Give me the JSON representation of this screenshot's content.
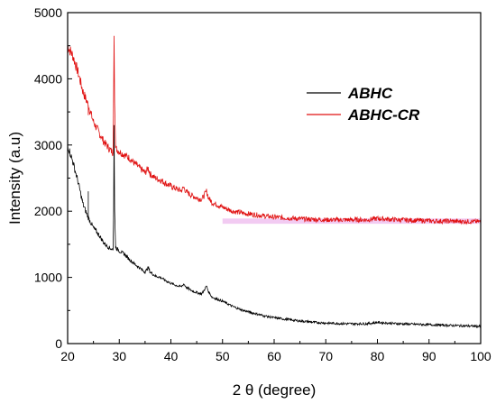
{
  "chart_data": {
    "type": "line",
    "title": "",
    "xlabel": "2 θ (degree)",
    "ylabel": "Intensity (a.u)",
    "xlim": [
      20,
      100
    ],
    "ylim": [
      0,
      5000
    ],
    "x_ticks": [
      20,
      30,
      40,
      50,
      60,
      70,
      80,
      90,
      100
    ],
    "y_ticks": [
      0,
      1000,
      2000,
      3000,
      4000,
      5000
    ],
    "grid": false,
    "legend_position": "upper-right",
    "colors": {
      "ABHC": "#000000",
      "ABHC-CR": "#e01010",
      "overlap_band": "#e8a0e8"
    },
    "series": [
      {
        "name": "ABHC",
        "color": "#000000",
        "points": [
          [
            20,
            3000
          ],
          [
            21,
            2750
          ],
          [
            22,
            2450
          ],
          [
            23,
            2100
          ],
          [
            24,
            1900
          ],
          [
            25,
            1750
          ],
          [
            26,
            1650
          ],
          [
            27,
            1520
          ],
          [
            28,
            1450
          ],
          [
            28.8,
            1420
          ],
          [
            28.9,
            2000
          ],
          [
            29.0,
            3300
          ],
          [
            29.1,
            2000
          ],
          [
            29.3,
            1450
          ],
          [
            30,
            1400
          ],
          [
            31,
            1350
          ],
          [
            32,
            1270
          ],
          [
            33,
            1200
          ],
          [
            34,
            1140
          ],
          [
            35,
            1080
          ],
          [
            35.6,
            1150
          ],
          [
            36,
            1080
          ],
          [
            37,
            1020
          ],
          [
            38,
            1000
          ],
          [
            39,
            950
          ],
          [
            40,
            910
          ],
          [
            41,
            880
          ],
          [
            42,
            860
          ],
          [
            42.5,
            900
          ],
          [
            43,
            850
          ],
          [
            44,
            800
          ],
          [
            45,
            770
          ],
          [
            46,
            750
          ],
          [
            46.9,
            870
          ],
          [
            47.3,
            780
          ],
          [
            48,
            700
          ],
          [
            50,
            640
          ],
          [
            52,
            560
          ],
          [
            54,
            500
          ],
          [
            56,
            460
          ],
          [
            58,
            420
          ],
          [
            60,
            390
          ],
          [
            62,
            370
          ],
          [
            64,
            350
          ],
          [
            66,
            335
          ],
          [
            68,
            320
          ],
          [
            70,
            310
          ],
          [
            72,
            305
          ],
          [
            74,
            300
          ],
          [
            76,
            300
          ],
          [
            78,
            300
          ],
          [
            80,
            320
          ],
          [
            82,
            310
          ],
          [
            84,
            300
          ],
          [
            86,
            295
          ],
          [
            88,
            290
          ],
          [
            90,
            285
          ],
          [
            92,
            280
          ],
          [
            94,
            275
          ],
          [
            96,
            270
          ],
          [
            98,
            265
          ],
          [
            100,
            260
          ]
        ],
        "spikes": [
          [
            24.0,
            2300
          ]
        ]
      },
      {
        "name": "ABHC-CR",
        "color": "#e01010",
        "points": [
          [
            20,
            4500
          ],
          [
            21,
            4350
          ],
          [
            22,
            4100
          ],
          [
            23,
            3800
          ],
          [
            24,
            3600
          ],
          [
            25,
            3350
          ],
          [
            26,
            3200
          ],
          [
            27,
            3050
          ],
          [
            28,
            2950
          ],
          [
            28.8,
            2880
          ],
          [
            28.9,
            3800
          ],
          [
            29.0,
            4650
          ],
          [
            29.1,
            3700
          ],
          [
            29.3,
            2950
          ],
          [
            30,
            2900
          ],
          [
            31,
            2850
          ],
          [
            32,
            2800
          ],
          [
            33,
            2720
          ],
          [
            34,
            2650
          ],
          [
            35,
            2580
          ],
          [
            35.6,
            2650
          ],
          [
            36,
            2560
          ],
          [
            37,
            2500
          ],
          [
            38,
            2470
          ],
          [
            39,
            2420
          ],
          [
            40,
            2380
          ],
          [
            41,
            2340
          ],
          [
            42,
            2310
          ],
          [
            42.5,
            2360
          ],
          [
            43,
            2290
          ],
          [
            44,
            2240
          ],
          [
            45,
            2200
          ],
          [
            46,
            2180
          ],
          [
            46.9,
            2300
          ],
          [
            47.3,
            2200
          ],
          [
            48,
            2130
          ],
          [
            50,
            2060
          ],
          [
            52,
            2000
          ],
          [
            54,
            1970
          ],
          [
            56,
            1950
          ],
          [
            58,
            1930
          ],
          [
            60,
            1910
          ],
          [
            62,
            1900
          ],
          [
            64,
            1890
          ],
          [
            66,
            1880
          ],
          [
            68,
            1875
          ],
          [
            70,
            1870
          ],
          [
            72,
            1870
          ],
          [
            74,
            1870
          ],
          [
            76,
            1870
          ],
          [
            78,
            1870
          ],
          [
            80,
            1890
          ],
          [
            82,
            1880
          ],
          [
            84,
            1870
          ],
          [
            86,
            1865
          ],
          [
            88,
            1860
          ],
          [
            90,
            1855
          ],
          [
            92,
            1850
          ],
          [
            94,
            1850
          ],
          [
            96,
            1845
          ],
          [
            98,
            1845
          ],
          [
            100,
            1840
          ]
        ],
        "spikes": [
          [
            24.0,
            3450
          ]
        ]
      }
    ]
  }
}
